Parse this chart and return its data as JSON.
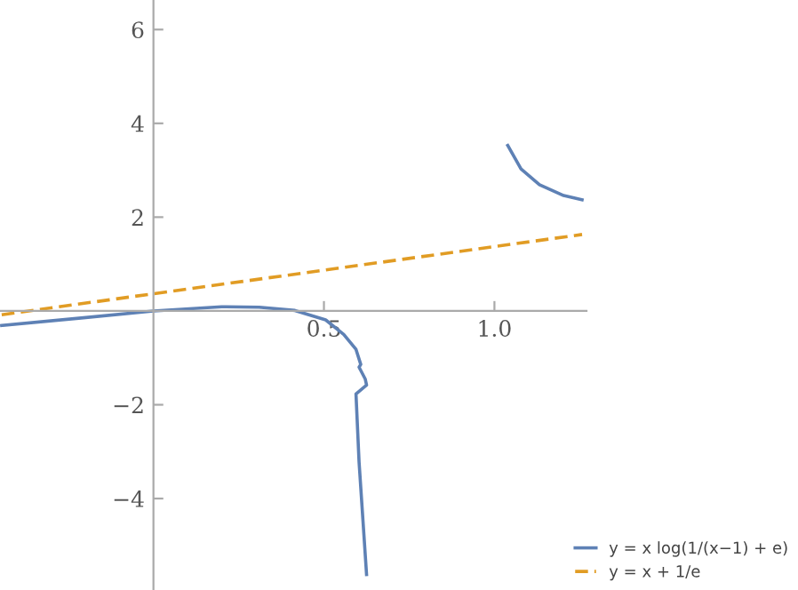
{
  "chart_data": {
    "type": "line",
    "xlim": [
      -0.45,
      1.27
    ],
    "ylim": [
      -5.95,
      6.63
    ],
    "xticks": [
      0.5,
      {
        "value": 1.0,
        "label": "1.0"
      }
    ],
    "yticks": [
      {
        "value": -4,
        "label": "−4"
      },
      {
        "value": -2,
        "label": "−2"
      },
      2,
      4,
      6
    ],
    "grid": false,
    "legend": "bottom right",
    "marker": "none",
    "series": [
      {
        "name": "y = x log(1/(x−1) + e)",
        "color": "#5e81b5",
        "line_style": "solid",
        "x": [
          -0.445,
          -0.212,
          0,
          0.2,
          0.31,
          0.415,
          0.505,
          0.558,
          0.594,
          0.608,
          0.603,
          0.621,
          0.625,
          0.594,
          0.603,
          0.625,
          null,
          1.039,
          1.078,
          1.132,
          1.203,
          1.257
        ],
        "values": [
          -0.31,
          -0.15,
          0,
          0.09,
          0.08,
          0.01,
          -0.19,
          -0.5,
          -0.82,
          -1.14,
          -1.2,
          -1.45,
          -1.58,
          -1.77,
          -3.22,
          -5.62,
          null,
          3.53,
          3.03,
          2.69,
          2.46,
          2.37
        ]
      },
      {
        "name": "y = x + 1/e",
        "color": "#e19c24",
        "line_style": "dashed",
        "x": [
          -0.445,
          1.257
        ],
        "values": [
          -0.08,
          1.63
        ]
      }
    ]
  }
}
